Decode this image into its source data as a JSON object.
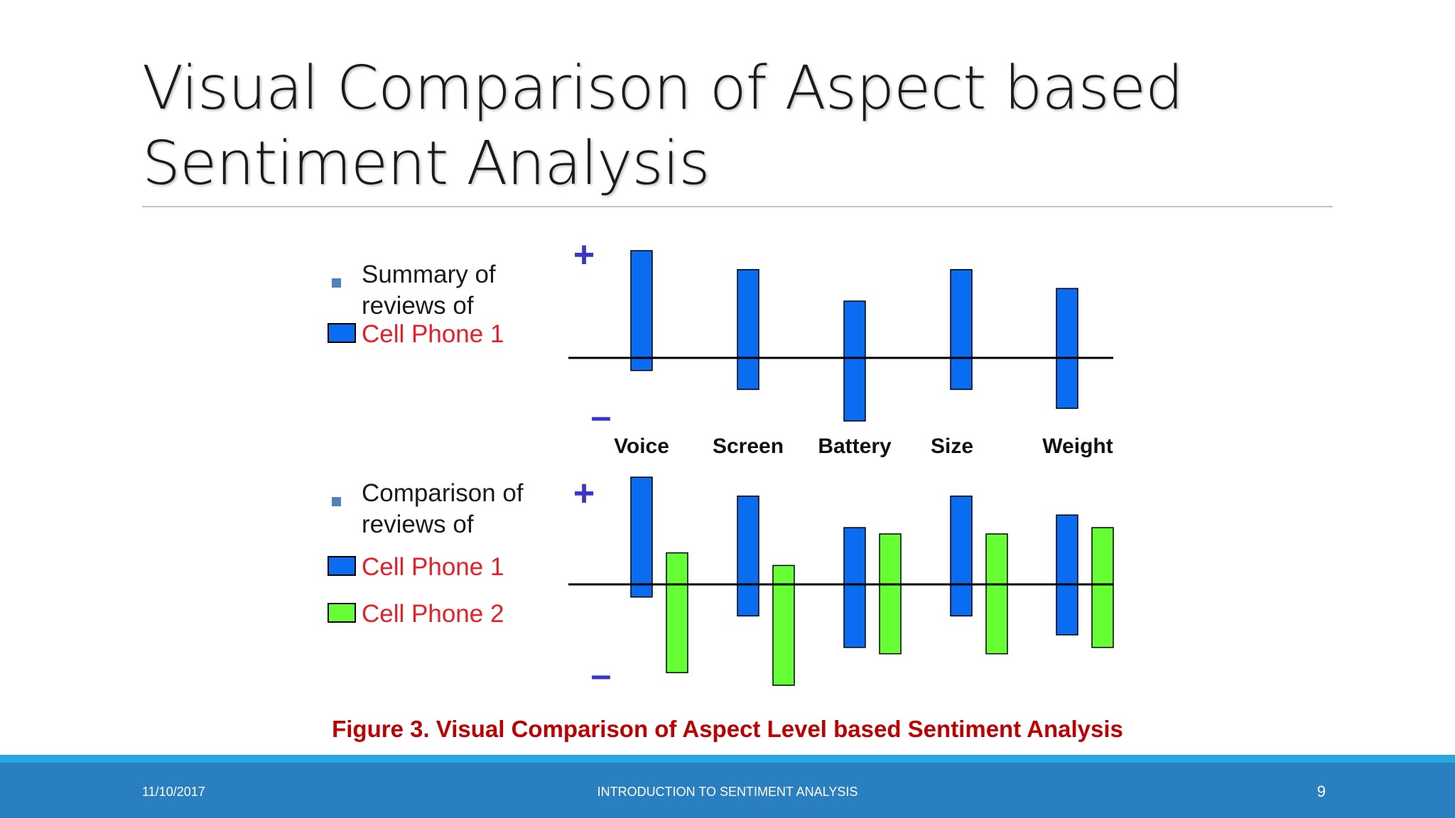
{
  "slide": {
    "title_line1": "Visual Comparison of Aspect based",
    "title_line2": "Sentiment Analysis",
    "caption": "Figure 3. Visual Comparison of Aspect Level based Sentiment Analysis"
  },
  "footer": {
    "date": "11/10/2017",
    "center": "INTRODUCTION TO SENTIMENT ANALYSIS",
    "page": "9"
  },
  "colors": {
    "phone1": "#0a6cf0",
    "phone2": "#66ff33",
    "positive_sign": "#3a35c8",
    "legend_red": "#ee1c25",
    "caption_red": "#c00000",
    "footer_bg": "#2a7fc0"
  },
  "chart_data": [
    {
      "type": "bar",
      "legend_lines": [
        "Summary of",
        "reviews of"
      ],
      "positive_label": "+",
      "negative_label": "–",
      "categories": [
        "Voice",
        "Screen",
        "Battery",
        "Size",
        "Weight"
      ],
      "ylim": [
        -1,
        1
      ],
      "series": [
        {
          "name": "Cell Phone 1",
          "positive": [
            0.68,
            0.56,
            0.36,
            0.56,
            0.44
          ],
          "negative": [
            -0.08,
            -0.2,
            -0.4,
            -0.2,
            -0.32
          ]
        }
      ]
    },
    {
      "type": "bar",
      "legend_lines": [
        "Comparison of",
        "reviews of"
      ],
      "positive_label": "+",
      "negative_label": "–",
      "categories": [
        "Voice",
        "Screen",
        "Battery",
        "Size",
        "Weight"
      ],
      "ylim": [
        -1,
        1
      ],
      "series": [
        {
          "name": "Cell Phone 1",
          "positive": [
            0.68,
            0.56,
            0.36,
            0.56,
            0.44
          ],
          "negative": [
            -0.08,
            -0.2,
            -0.4,
            -0.2,
            -0.32
          ]
        },
        {
          "name": "Cell Phone 2",
          "positive": [
            0.2,
            0.12,
            0.32,
            0.32,
            0.36
          ],
          "negative": [
            -0.56,
            -0.64,
            -0.44,
            -0.44,
            -0.4
          ]
        }
      ]
    }
  ]
}
